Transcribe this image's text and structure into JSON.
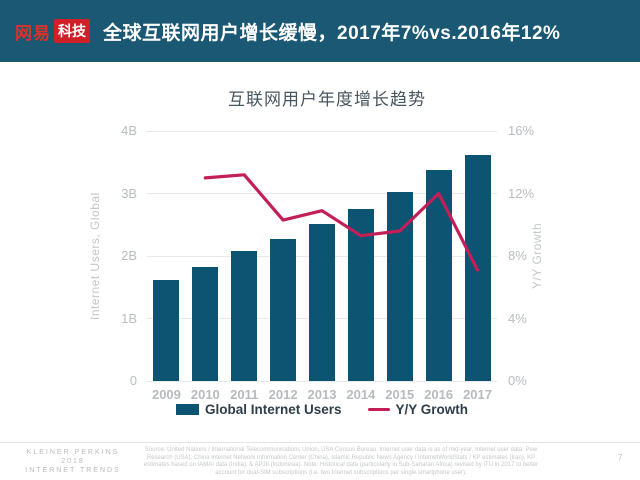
{
  "header": {
    "logo_netease": "网易",
    "logo_tech": "科技",
    "title": "全球互联网用户增长缓慢，2017年7%vs.2016年12%"
  },
  "chart_data": {
    "type": "bar",
    "title": "互联网用户年度增长趋势",
    "categories": [
      "2009",
      "2010",
      "2011",
      "2012",
      "2013",
      "2014",
      "2015",
      "2016",
      "2017"
    ],
    "series": [
      {
        "name": "Global Internet Users",
        "type": "bar",
        "axis": "left",
        "unit": "B",
        "color": "#0d5472",
        "values": [
          1.62,
          1.82,
          2.08,
          2.28,
          2.52,
          2.76,
          3.02,
          3.38,
          3.62
        ]
      },
      {
        "name": "Y/Y Growth",
        "type": "line",
        "axis": "right",
        "unit": "%",
        "color": "#c41e58",
        "start_index": 1,
        "values": [
          13.0,
          13.2,
          10.3,
          10.9,
          9.3,
          9.6,
          12.0,
          7.1
        ]
      }
    ],
    "left_axis": {
      "label": "Internet Users, Global",
      "ticks": [
        "0",
        "1B",
        "2B",
        "3B",
        "4B"
      ],
      "range": [
        0,
        4
      ]
    },
    "right_axis": {
      "label": "Y/Y Growth",
      "ticks": [
        "0%",
        "4%",
        "8%",
        "12%",
        "16%"
      ],
      "range": [
        0,
        16
      ]
    },
    "grid": true,
    "legend_position": "bottom"
  },
  "footer": {
    "brand_line1": "KLEINER PERKINS",
    "brand_line2": "2018",
    "brand_line3": "INTERNET TRENDS",
    "source": "Source: United Nations / International Telecommunications Union, USA Census Bureau. Internet user data is as of mid-year. Internet user data: Pew Research (USA), China Internet Network Information Center (China), Islamic Republic News Agency / InternetWorldStats / KP estimates (Iran), KP estimates based on IAMAI data (India), & APJII (Indonesia). Note: Historical data (particularly in Sub-Saharan Africa) revised by ITU in 2017 to better account for dual-SIM subscriptions (i.e. two Internet subscriptions per single smartphone user).",
    "page_number": "7"
  },
  "colors": {
    "header_bg": "#1a5873",
    "logo_red": "#dd3127",
    "logo_box_red": "#cf2027",
    "bar": "#0d5472",
    "line": "#c41e58",
    "tick_text": "#b9bdc0",
    "grid": "#e6e9ea",
    "chart_title_text": "#47555f",
    "legend_text": "#2f3e48"
  }
}
